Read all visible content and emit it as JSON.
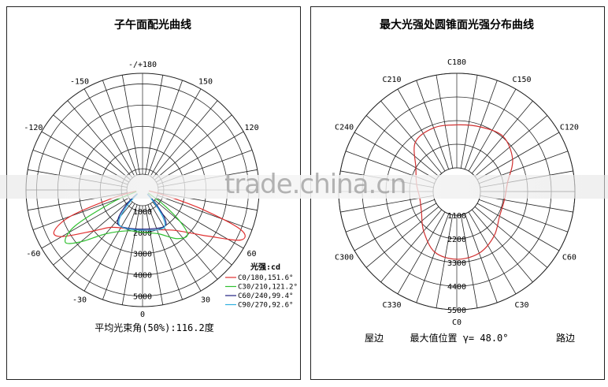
{
  "chart_data": [
    {
      "type": "polar-line",
      "title": "子午面配光曲线",
      "angle_labels": [
        "-/+180",
        "150",
        "120",
        "60",
        "30",
        "0",
        "-30",
        "-60",
        "-120",
        "-150"
      ],
      "angle_values": [
        180,
        150,
        120,
        60,
        30,
        0,
        -30,
        -60,
        -120,
        -150
      ],
      "radial_ticks": [
        1000,
        2000,
        3000,
        4000,
        5000
      ],
      "rlim": [
        0,
        5500
      ],
      "legend_title": "光强:cd",
      "legend_placement": "bottom-right",
      "series": [
        {
          "name": "C0/180,151.6°",
          "color": "#e03030",
          "points": [
            [
              -80,
              300
            ],
            [
              -75,
              1400
            ],
            [
              -70,
              3600
            ],
            [
              -65,
              4600
            ],
            [
              -60,
              4400
            ],
            [
              -50,
              3000
            ],
            [
              -40,
              2300
            ],
            [
              -20,
              1950
            ],
            [
              0,
              1900
            ],
            [
              20,
              2000
            ],
            [
              40,
              2500
            ],
            [
              55,
              3800
            ],
            [
              63,
              5200
            ],
            [
              68,
              5000
            ],
            [
              72,
              3000
            ],
            [
              76,
              1200
            ],
            [
              82,
              300
            ]
          ]
        },
        {
          "name": "C30/210,121.2°",
          "color": "#30c030",
          "points": [
            [
              -75,
              300
            ],
            [
              -68,
              1500
            ],
            [
              -62,
              3600
            ],
            [
              -56,
              4400
            ],
            [
              -50,
              3800
            ],
            [
              -40,
              2700
            ],
            [
              -20,
              2050
            ],
            [
              0,
              2000
            ],
            [
              20,
              2200
            ],
            [
              35,
              2800
            ],
            [
              45,
              3000
            ],
            [
              50,
              2300
            ],
            [
              55,
              1200
            ],
            [
              62,
              300
            ]
          ]
        },
        {
          "name": "C60/240,99.4°",
          "color": "#202080",
          "points": [
            [
              -55,
              300
            ],
            [
              -48,
              1000
            ],
            [
              -40,
              1800
            ],
            [
              -30,
              2000
            ],
            [
              0,
              1850
            ],
            [
              30,
              2000
            ],
            [
              38,
              1700
            ],
            [
              44,
              900
            ],
            [
              52,
              300
            ]
          ]
        },
        {
          "name": "C90/270,92.6°",
          "color": "#30b0e0",
          "points": [
            [
              -52,
              300
            ],
            [
              -45,
              1000
            ],
            [
              -38,
              1800
            ],
            [
              -28,
              2000
            ],
            [
              0,
              1900
            ],
            [
              28,
              2050
            ],
            [
              36,
              1700
            ],
            [
              42,
              900
            ],
            [
              48,
              300
            ]
          ]
        }
      ],
      "footer": "平均光束角(50%):116.2度"
    },
    {
      "type": "polar-line",
      "title": "最大光强处圆锥面光强分布曲线",
      "angle_labels": [
        "C0",
        "C30",
        "C60",
        "C120",
        "C150",
        "C180",
        "C210",
        "C240",
        "C300",
        "C330"
      ],
      "angle_values": [
        0,
        30,
        60,
        120,
        150,
        180,
        210,
        240,
        300,
        330
      ],
      "radial_ticks": [
        1100,
        2200,
        3300,
        4400,
        5500
      ],
      "rlim": [
        0,
        5500
      ],
      "series": [
        {
          "color": "#d03030",
          "points": [
            [
              0,
              3150
            ],
            [
              20,
              3050
            ],
            [
              40,
              2700
            ],
            [
              60,
              2300
            ],
            [
              80,
              2250
            ],
            [
              100,
              2400
            ],
            [
              120,
              3000
            ],
            [
              140,
              3350
            ],
            [
              160,
              3200
            ],
            [
              180,
              3100
            ],
            [
              200,
              3150
            ],
            [
              220,
              3000
            ],
            [
              240,
              2200
            ],
            [
              260,
              1900
            ],
            [
              280,
              1750
            ],
            [
              300,
              1900
            ],
            [
              320,
              2400
            ],
            [
              340,
              3000
            ]
          ]
        }
      ],
      "footer_left": "屋边",
      "footer_center": "最大值位置 γ= 48.0°",
      "footer_right": "路边"
    }
  ],
  "watermark": "trade.china.cn"
}
